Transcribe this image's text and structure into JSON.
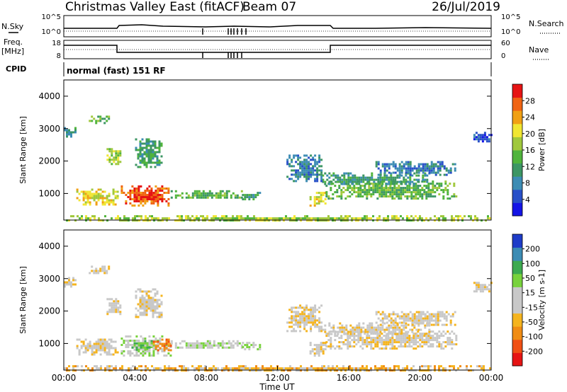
{
  "header": {
    "station": "Christmas Valley East (fitACF)",
    "beam": "Beam 07",
    "date": "26/Jul/2019"
  },
  "strip_panels": {
    "nsky_label": "N.Sky",
    "nsky_ticks": [
      "10^5",
      "10^0"
    ],
    "nsearch_label": "N.Search",
    "nsearch_ticks": [
      "10^5",
      "10^0"
    ],
    "freq_label_1": "Freq.",
    "freq_label_2": "[MHz]",
    "freq_ticks": [
      "18",
      "8"
    ],
    "nave_label": "Nave",
    "nave_ticks": [
      "60",
      "0"
    ],
    "cpid_label": "CPID",
    "cpid_value": "normal (fast) 151 RF"
  },
  "chart_data": [
    {
      "type": "heatmap",
      "title": "",
      "parameter": "Power",
      "ylabel": "Slant Range [km]",
      "xlabel": "",
      "ylim": [
        180,
        4500
      ],
      "yticks": [
        "1000",
        "2000",
        "3000",
        "4000"
      ],
      "colorbar_label": "Power [dB]",
      "colorbar_ticks": [
        "4",
        "8",
        "12",
        "16",
        "20",
        "24",
        "28"
      ],
      "colors": [
        "#1414e6",
        "#2850c8",
        "#3c8cb4",
        "#3c9664",
        "#50b43c",
        "#a0c83c",
        "#f0e632",
        "#f0a014",
        "#f06414",
        "#e61414"
      ],
      "regions": [
        {
          "t": [
            0.7,
            3.0
          ],
          "r": [
            650,
            1150
          ],
          "level": 6
        },
        {
          "t": [
            3.2,
            6.0
          ],
          "r": [
            650,
            1250
          ],
          "level": 8
        },
        {
          "t": [
            3.8,
            5.5
          ],
          "r": [
            800,
            1050
          ],
          "level": 9
        },
        {
          "t": [
            6.0,
            10.0
          ],
          "r": [
            850,
            1100
          ],
          "level": 4
        },
        {
          "t": [
            10.0,
            11.0
          ],
          "r": [
            850,
            1050
          ],
          "level": 3
        },
        {
          "t": [
            4.0,
            5.5
          ],
          "r": [
            1800,
            2700
          ],
          "level": 3
        },
        {
          "t": [
            2.4,
            3.2
          ],
          "r": [
            1900,
            2400
          ],
          "level": 5
        },
        {
          "t": [
            1.4,
            2.5
          ],
          "r": [
            3200,
            3400
          ],
          "level": 4
        },
        {
          "t": [
            0.0,
            0.6
          ],
          "r": [
            2750,
            3050
          ],
          "level": 3
        },
        {
          "t": [
            13.8,
            14.7
          ],
          "r": [
            650,
            1050
          ],
          "level": 6
        },
        {
          "t": [
            14.7,
            22.0
          ],
          "r": [
            850,
            1400
          ],
          "level": 4
        },
        {
          "t": [
            14.5,
            20.5
          ],
          "r": [
            1300,
            1650
          ],
          "level": 3
        },
        {
          "t": [
            17.5,
            22.0
          ],
          "r": [
            1600,
            2000
          ],
          "level": 2
        },
        {
          "t": [
            12.5,
            14.5
          ],
          "r": [
            1400,
            2200
          ],
          "level": 2
        },
        {
          "t": [
            23.0,
            24.0
          ],
          "r": [
            2600,
            2900
          ],
          "level": 1
        },
        {
          "t": [
            0.0,
            24.0
          ],
          "r": [
            180,
            330
          ],
          "level": 5
        }
      ]
    },
    {
      "type": "heatmap",
      "title": "",
      "parameter": "Velocity",
      "ylabel": "Slant Range [km]",
      "xlabel": "Time UT",
      "ylim": [
        180,
        4500
      ],
      "yticks": [
        "1000",
        "2000",
        "3000",
        "4000"
      ],
      "xticks": [
        "00:00",
        "04:00",
        "08:00",
        "12:00",
        "16:00",
        "20:00",
        "00:00"
      ],
      "xlim_hours": [
        0,
        24
      ],
      "colorbar_label": "Velocity [m s-1]",
      "colorbar_ticks": [
        "-200",
        "-100",
        "-50",
        "-15",
        "15",
        "50",
        "100",
        "200"
      ],
      "colors": [
        "#e61414",
        "#f05014",
        "#f08c14",
        "#f5b41e",
        "#c8c8c8",
        "#c8c8c8",
        "#78d23c",
        "#3caa50",
        "#3c8cb4",
        "#1e3cc8"
      ],
      "regions": [
        {
          "t": [
            0.7,
            3.0
          ],
          "r": [
            650,
            1150
          ],
          "level": 4
        },
        {
          "t": [
            3.2,
            6.0
          ],
          "r": [
            650,
            1250
          ],
          "level": 5
        },
        {
          "t": [
            3.8,
            5.0
          ],
          "r": [
            800,
            1100
          ],
          "level": 6
        },
        {
          "t": [
            5.0,
            6.0
          ],
          "r": [
            750,
            1150
          ],
          "level": 2
        },
        {
          "t": [
            6.0,
            10.0
          ],
          "r": [
            850,
            1100
          ],
          "level": 5
        },
        {
          "t": [
            10.0,
            11.0
          ],
          "r": [
            850,
            1050
          ],
          "level": 5
        },
        {
          "t": [
            4.0,
            5.5
          ],
          "r": [
            1800,
            2700
          ],
          "level": 4
        },
        {
          "t": [
            2.4,
            3.2
          ],
          "r": [
            1900,
            2400
          ],
          "level": 4
        },
        {
          "t": [
            1.4,
            2.5
          ],
          "r": [
            3200,
            3400
          ],
          "level": 4
        },
        {
          "t": [
            0.0,
            0.6
          ],
          "r": [
            2750,
            3050
          ],
          "level": 4
        },
        {
          "t": [
            13.8,
            14.7
          ],
          "r": [
            650,
            1050
          ],
          "level": 4
        },
        {
          "t": [
            14.7,
            22.0
          ],
          "r": [
            850,
            1400
          ],
          "level": 4
        },
        {
          "t": [
            14.5,
            20.5
          ],
          "r": [
            1300,
            1650
          ],
          "level": 4
        },
        {
          "t": [
            17.5,
            22.0
          ],
          "r": [
            1600,
            2000
          ],
          "level": 4
        },
        {
          "t": [
            12.5,
            14.5
          ],
          "r": [
            1400,
            2200
          ],
          "level": 4
        },
        {
          "t": [
            23.0,
            24.0
          ],
          "r": [
            2600,
            2900
          ],
          "level": 4
        },
        {
          "t": [
            0.0,
            24.0
          ],
          "r": [
            180,
            330
          ],
          "level": 3
        }
      ]
    }
  ]
}
